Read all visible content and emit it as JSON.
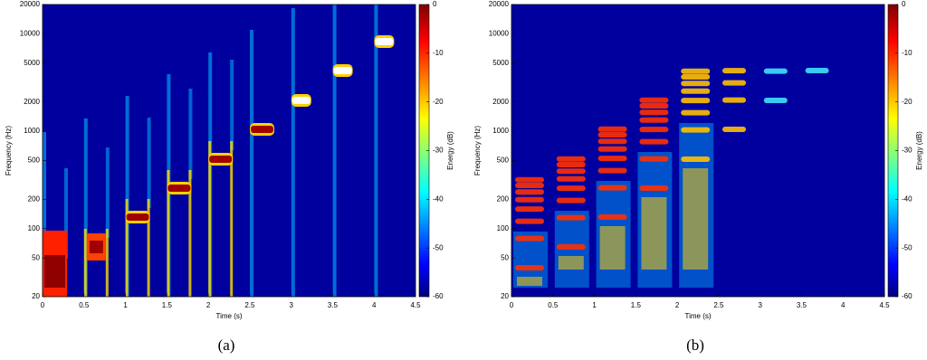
{
  "chart_data": [
    {
      "type": "heatmap",
      "caption": "(a)",
      "xlabel": "Time (s)",
      "ylabel": "Frequency (Hz)",
      "colorbar_label": "Energy (dB)",
      "xlim": [
        0,
        4.5
      ],
      "xticks": [
        0,
        0.5,
        1,
        1.5,
        2,
        2.5,
        3,
        3.5,
        4,
        4.5
      ],
      "ylim": [
        20,
        20000
      ],
      "yticks": [
        20,
        50,
        100,
        200,
        500,
        1000,
        2000,
        5000,
        10000,
        20000
      ],
      "yscale": "log",
      "clim": [
        -60,
        0
      ],
      "cticks": [
        0,
        -10,
        -20,
        -30,
        -40,
        -50,
        -60
      ],
      "colormap": "jet"
    },
    {
      "type": "heatmap",
      "caption": "(b)",
      "xlabel": "Time (s)",
      "ylabel": "Frequency (Hz)",
      "colorbar_label": "Energy (dB)",
      "xlim": [
        0,
        4.5
      ],
      "xticks": [
        0,
        0.5,
        1,
        1.5,
        2,
        2.5,
        3,
        3.5,
        4,
        4.5
      ],
      "ylim": [
        20,
        20000
      ],
      "yticks": [
        20,
        50,
        100,
        200,
        500,
        1000,
        2000,
        5000,
        10000,
        20000
      ],
      "yscale": "log",
      "clim": [
        -60,
        0
      ],
      "cticks": [
        0,
        -10,
        -20,
        -30,
        -40,
        -50,
        -60
      ],
      "colormap": "jet"
    }
  ]
}
